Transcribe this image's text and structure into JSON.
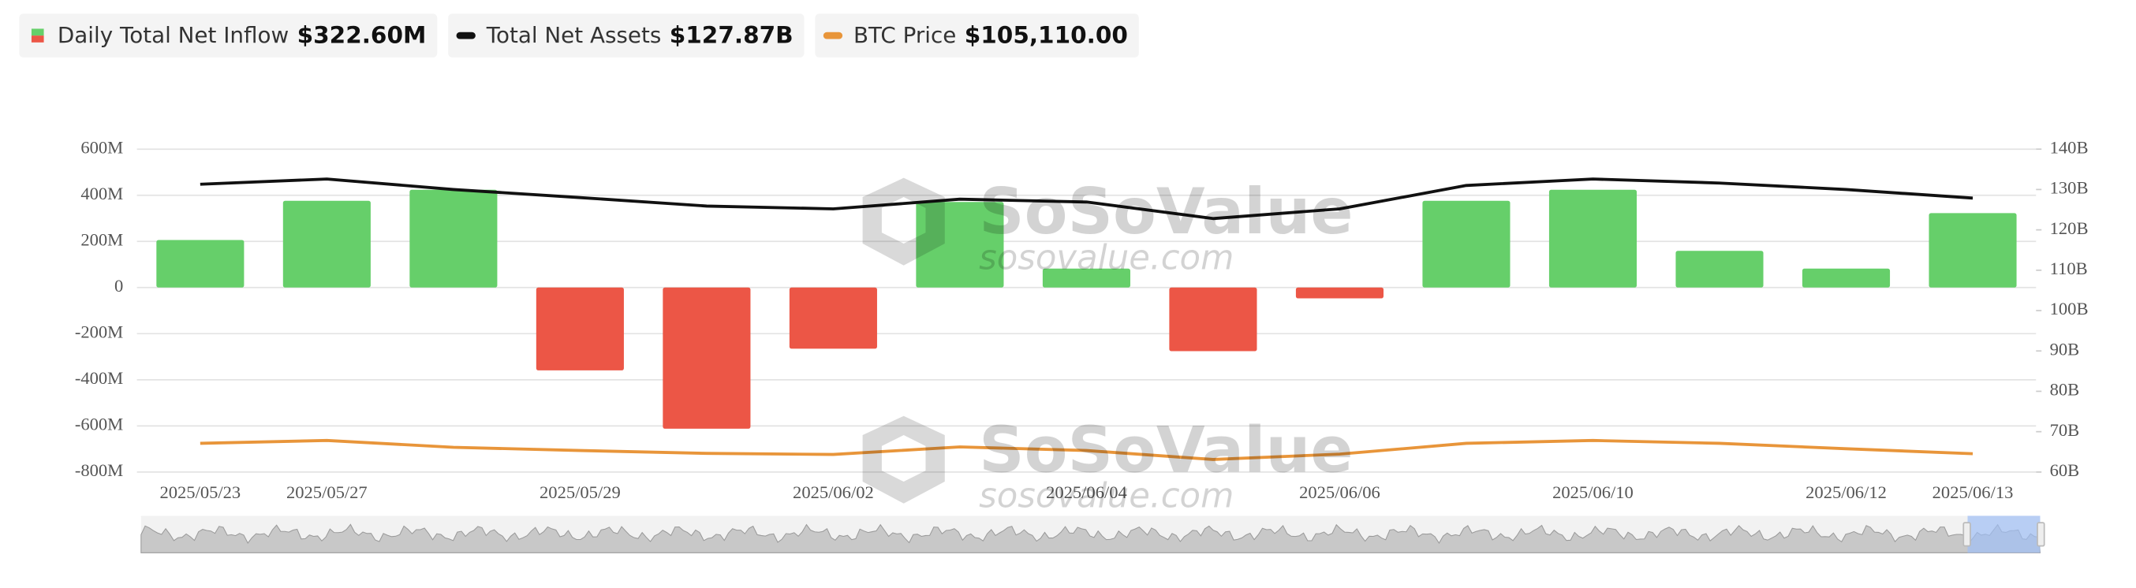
{
  "chart_data": {
    "type": "bar",
    "categories": [
      "2025/05/23",
      "2025/05/27",
      null,
      "2025/05/29",
      null,
      "2025/06/02",
      null,
      "2025/06/04",
      null,
      "2025/06/06",
      null,
      "2025/06/10",
      null,
      "2025/06/12",
      "2025/06/13"
    ],
    "series": [
      {
        "name": "Daily Total Net Inflow",
        "type": "bar",
        "positive_color": "#66cf6a",
        "negative_color": "#ec5646",
        "latest_label": "$322.60M",
        "values": [
          206,
          376,
          424,
          -359,
          -612,
          -265,
          371,
          82,
          -276,
          -47,
          376,
          424,
          159,
          82,
          322.6
        ]
      },
      {
        "name": "Total Net Assets",
        "type": "line",
        "axis": "y2",
        "color": "#111111",
        "latest_label": "$127.87B",
        "values": [
          131.3,
          132.6,
          130,
          128,
          125.9,
          125.2,
          127.6,
          126.9,
          122.8,
          125.2,
          131,
          132.6,
          131.6,
          130,
          127.87
        ]
      },
      {
        "name": "BTC Price",
        "type": "line",
        "axis": "y3",
        "color": "#e8953a",
        "latest_label": "$105,110.00",
        "values": [
          108000,
          108800,
          106900,
          106000,
          105200,
          104900,
          107000,
          106000,
          103500,
          105000,
          108000,
          108800,
          108000,
          106500,
          105110
        ]
      }
    ],
    "ylim": [
      -800,
      600
    ],
    "yticks": [
      {
        "value": -800,
        "label": "-800M"
      },
      {
        "value": -600,
        "label": "-600M"
      },
      {
        "value": -400,
        "label": "-400M"
      },
      {
        "value": -200,
        "label": "-200M"
      },
      0,
      {
        "value": 200,
        "label": "200M"
      },
      {
        "value": 400,
        "label": "400M"
      },
      {
        "value": 600,
        "label": "600M"
      }
    ],
    "y2lim": [
      60,
      140
    ],
    "y2ticks": [
      {
        "value": 60,
        "label": "60B"
      },
      {
        "value": 70,
        "label": "70B"
      },
      {
        "value": 80,
        "label": "80B"
      },
      {
        "value": 90,
        "label": "90B"
      },
      {
        "value": 100,
        "label": "100B"
      },
      {
        "value": 110,
        "label": "110B"
      },
      {
        "value": 120,
        "label": "120B"
      },
      {
        "value": 130,
        "label": "130B"
      },
      {
        "value": 140,
        "label": "140B"
      }
    ],
    "y3lim": [
      100000,
      190000
    ],
    "grid": true
  },
  "watermark": [
    "SoSoValue",
    "sosovalue.com"
  ]
}
